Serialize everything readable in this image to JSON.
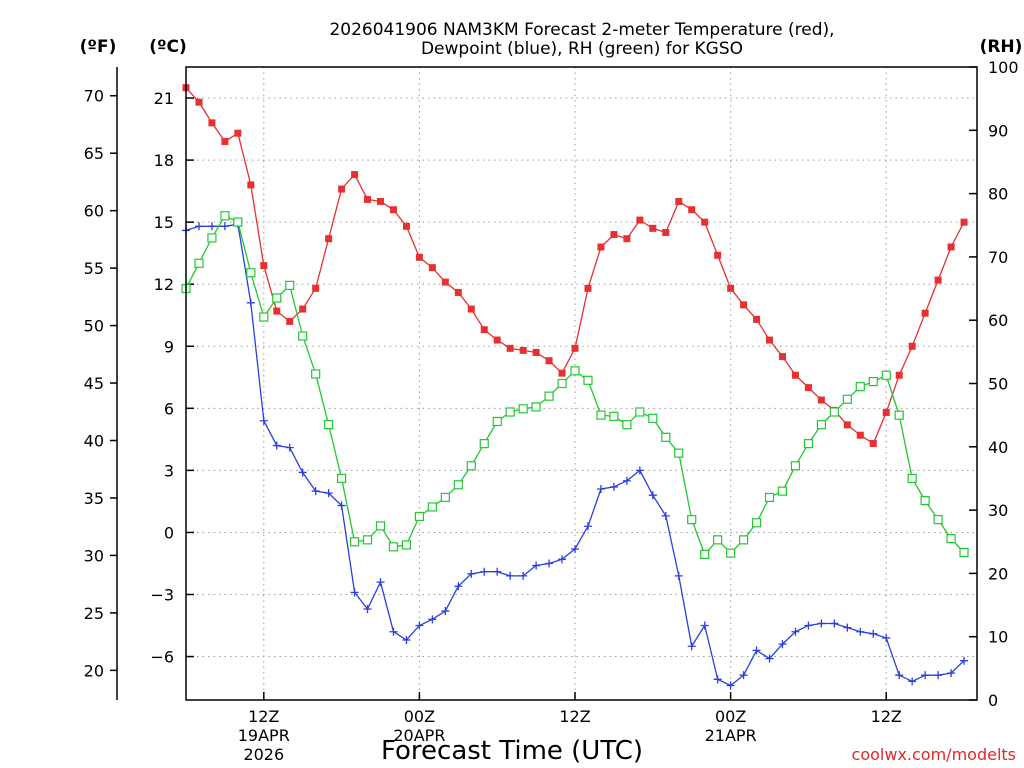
{
  "chart_data": {
    "type": "line",
    "title_line1": "2026041906 NAM3KM Forecast 2-meter Temperature (red),",
    "title_line2": "Dewpoint (blue), RH (green) for KGSO",
    "xlabel": "Forecast Time (UTC)",
    "credit": "coolwx.com/modelts",
    "units": {
      "fahrenheit": "(ºF)",
      "celsius": "(ºC)",
      "rh": "(RH)"
    },
    "celsius_range": [
      -8.1,
      22.5
    ],
    "rh_range": [
      0,
      100
    ],
    "x_range_hours": [
      0,
      61
    ],
    "celsius_ticks": [
      "21",
      "18",
      "15",
      "12",
      "9",
      "6",
      "3",
      "0",
      "−3",
      "−6"
    ],
    "celsius_tick_values": [
      21,
      18,
      15,
      12,
      9,
      6,
      3,
      0,
      -3,
      -6
    ],
    "fahrenheit_ticks": [
      "70",
      "65",
      "60",
      "55",
      "50",
      "45",
      "40",
      "35",
      "30",
      "25",
      "20"
    ],
    "fahrenheit_tick_values": [
      70,
      65,
      60,
      55,
      50,
      45,
      40,
      35,
      30,
      25,
      20
    ],
    "rh_ticks": [
      "100",
      "90",
      "80",
      "70",
      "60",
      "50",
      "40",
      "30",
      "20",
      "10",
      "0"
    ],
    "rh_tick_values": [
      100,
      90,
      80,
      70,
      60,
      50,
      40,
      30,
      20,
      10,
      0
    ],
    "x_ticks": [
      {
        "hour": 6,
        "line1": "12Z",
        "line2": "19APR",
        "line3": "2026"
      },
      {
        "hour": 18,
        "line1": "00Z",
        "line2": "20APR",
        "line3": ""
      },
      {
        "hour": 30,
        "line1": "12Z",
        "line2": "",
        "line3": ""
      },
      {
        "hour": 42,
        "line1": "00Z",
        "line2": "21APR",
        "line3": ""
      },
      {
        "hour": 54,
        "line1": "12Z",
        "line2": "",
        "line3": ""
      }
    ],
    "series": [
      {
        "name": "2-meter Temperature",
        "unit": "C",
        "color": "#e83030",
        "marker": "filled-square",
        "values": [
          21.5,
          20.8,
          19.8,
          18.9,
          19.3,
          16.8,
          12.9,
          10.7,
          10.2,
          10.8,
          11.8,
          14.2,
          16.6,
          17.3,
          16.1,
          16.0,
          15.6,
          14.8,
          13.3,
          12.8,
          12.1,
          11.6,
          10.8,
          9.8,
          9.3,
          8.9,
          8.8,
          8.7,
          8.3,
          7.7,
          8.9,
          11.8,
          13.8,
          14.4,
          14.2,
          15.1,
          14.7,
          14.5,
          16.0,
          15.6,
          15.0,
          13.4,
          11.8,
          11.0,
          10.3,
          9.3,
          8.5,
          7.6,
          7.0,
          6.4,
          5.9,
          5.2,
          4.7,
          4.3,
          5.8,
          7.6,
          9.0,
          10.6,
          12.2,
          13.8,
          15.0
        ]
      },
      {
        "name": "Dewpoint",
        "unit": "C",
        "color": "#2a3fe0",
        "marker": "plus",
        "values": [
          14.6,
          14.8,
          14.8,
          14.8,
          14.9,
          11.1,
          5.4,
          4.2,
          4.1,
          2.9,
          2.0,
          1.9,
          1.3,
          -2.9,
          -3.7,
          -2.4,
          -4.8,
          -5.2,
          -4.5,
          -4.2,
          -3.8,
          -2.6,
          -2.0,
          -1.9,
          -1.9,
          -2.1,
          -2.1,
          -1.6,
          -1.5,
          -1.3,
          -0.8,
          0.3,
          2.1,
          2.2,
          2.5,
          3.0,
          1.8,
          0.8,
          -2.1,
          -5.5,
          -4.5,
          -7.1,
          -7.4,
          -6.9,
          -5.7,
          -6.1,
          -5.4,
          -4.8,
          -4.5,
          -4.4,
          -4.4,
          -4.6,
          -4.8,
          -4.9,
          -5.1,
          -6.9,
          -7.2,
          -6.9,
          -6.9,
          -6.8,
          -6.2
        ]
      },
      {
        "name": "RH",
        "unit": "%",
        "color": "#22c832",
        "marker": "open-square",
        "values": [
          65,
          69,
          73,
          76.5,
          75.5,
          67.5,
          60.5,
          63.5,
          65.5,
          57.5,
          51.5,
          43.5,
          35,
          25,
          25.3,
          27.5,
          24.2,
          24.5,
          29,
          30.5,
          32,
          34,
          37,
          40.5,
          44,
          45.5,
          46,
          46.3,
          48,
          50,
          52,
          50.5,
          45,
          44.8,
          43.5,
          45.5,
          44.5,
          41.5,
          39,
          28.5,
          23,
          25.3,
          23.2,
          25.3,
          28,
          32,
          33,
          37,
          40.5,
          43.5,
          45.5,
          47.5,
          49.5,
          50.3,
          51.3,
          45,
          35,
          31.5,
          28.5,
          25.5,
          23.3
        ]
      }
    ]
  }
}
